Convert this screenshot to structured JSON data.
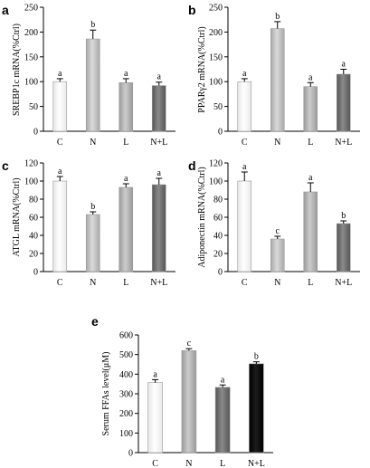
{
  "chart_data": [
    {
      "type": "bar",
      "panel": "a",
      "ylabel": "SREBP1c mRNA(%Ctrl)",
      "categories": [
        "C",
        "N",
        "L",
        "N+L"
      ],
      "values": [
        100,
        186,
        98,
        92
      ],
      "errors": [
        6,
        18,
        8,
        7
      ],
      "significance": [
        "a",
        "b",
        "a",
        "a"
      ],
      "colors": [
        "#ffffff",
        "#c8c8c8",
        "#b9b9b9",
        "#6f6f6f"
      ],
      "ylim": [
        0,
        250
      ],
      "yticks": [
        0,
        50,
        100,
        150,
        200,
        250
      ],
      "grid": false
    },
    {
      "type": "bar",
      "panel": "b",
      "ylabel": "PPARγ2 mRNA(%Ctrl)",
      "categories": [
        "C",
        "N",
        "L",
        "N+L"
      ],
      "values": [
        100,
        207,
        90,
        115
      ],
      "errors": [
        6,
        14,
        8,
        10
      ],
      "significance": [
        "a",
        "b",
        "a",
        "a"
      ],
      "colors": [
        "#ffffff",
        "#c8c8c8",
        "#b9b9b9",
        "#6f6f6f"
      ],
      "ylim": [
        0,
        250
      ],
      "yticks": [
        0,
        50,
        100,
        150,
        200,
        250
      ],
      "grid": false
    },
    {
      "type": "bar",
      "panel": "c",
      "ylabel": "ATGL mRNA(%Ctrl)",
      "categories": [
        "C",
        "N",
        "L",
        "N+L"
      ],
      "values": [
        100,
        63,
        93,
        96
      ],
      "errors": [
        5,
        3,
        4,
        7
      ],
      "significance": [
        "a",
        "b",
        "a",
        "a"
      ],
      "colors": [
        "#ffffff",
        "#c8c8c8",
        "#b9b9b9",
        "#6f6f6f"
      ],
      "ylim": [
        0,
        120
      ],
      "yticks": [
        0,
        20,
        40,
        60,
        80,
        100,
        120
      ],
      "grid": false
    },
    {
      "type": "bar",
      "panel": "d",
      "ylabel": "Adiponectin mRNA(%Ctrl)",
      "categories": [
        "C",
        "N",
        "L",
        "N+L"
      ],
      "values": [
        100,
        36,
        88,
        53
      ],
      "errors": [
        10,
        3,
        10,
        3
      ],
      "significance": [
        "a",
        "c",
        "a",
        "b"
      ],
      "colors": [
        "#ffffff",
        "#c8c8c8",
        "#b9b9b9",
        "#6f6f6f"
      ],
      "ylim": [
        0,
        120
      ],
      "yticks": [
        0,
        20,
        40,
        60,
        80,
        100,
        120
      ],
      "grid": false
    },
    {
      "type": "bar",
      "panel": "e",
      "ylabel": "Serum FFAs level(μM)",
      "categories": [
        "C",
        "N",
        "L",
        "N+L"
      ],
      "values": [
        357,
        520,
        333,
        453
      ],
      "errors": [
        15,
        10,
        12,
        10
      ],
      "significance": [
        "a",
        "c",
        "a",
        "b"
      ],
      "colors": [
        "#ffffff",
        "#8c8c8c",
        "#6f6f6f",
        "#000000"
      ],
      "ylim": [
        0,
        600
      ],
      "yticks": [
        0,
        100,
        200,
        300,
        400,
        500,
        600
      ],
      "grid": false
    }
  ]
}
